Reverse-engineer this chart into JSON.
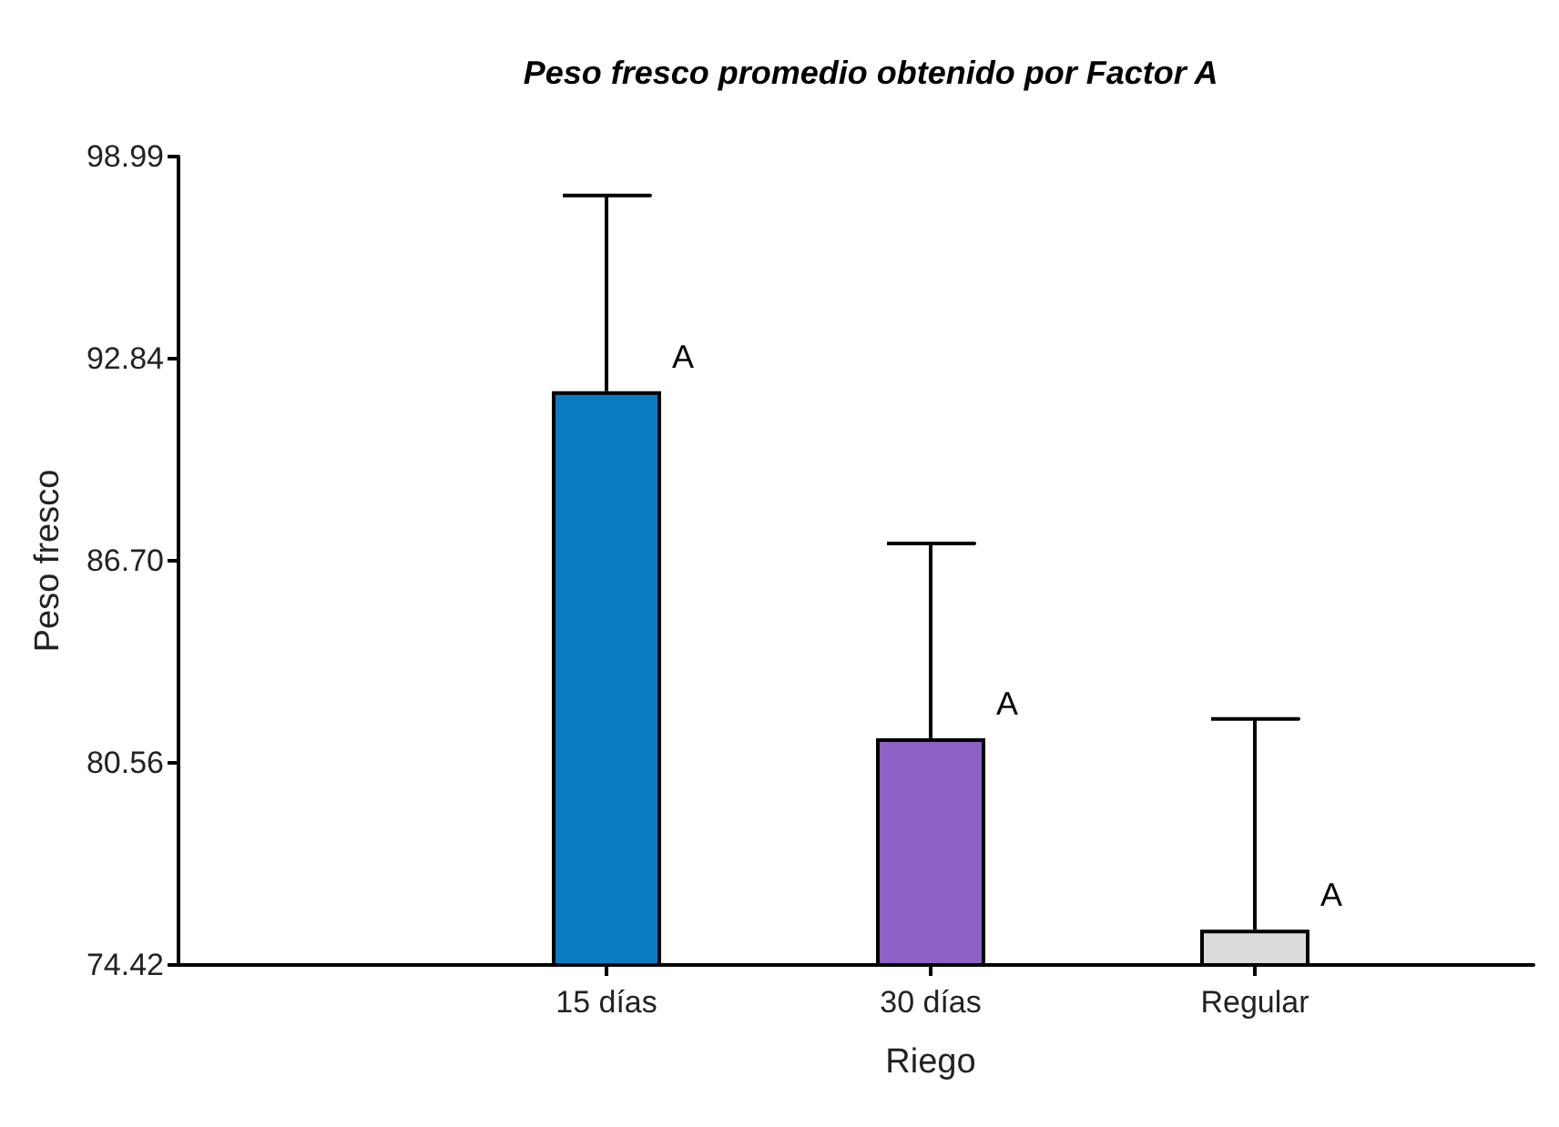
{
  "chart_data": {
    "type": "bar",
    "title": "Peso fresco promedio obtenido por Factor A",
    "xlabel": "Riego",
    "ylabel": "Peso fresco",
    "categories": [
      "15 días",
      "30 días",
      "Regular"
    ],
    "values": [
      91.86,
      81.31,
      75.49
    ],
    "colors": [
      "#0a7cc2",
      "#8e62c4",
      "#dcdcdc"
    ],
    "errors": [
      [
        91.86,
        97.81
      ],
      [
        81.31,
        87.23
      ],
      [
        75.49,
        81.9
      ]
    ],
    "ylim": [
      74.42,
      98.99
    ],
    "yticks": [
      {
        "value": 74.42,
        "label": "74.42"
      },
      {
        "value": 80.56,
        "label": "80.56"
      },
      {
        "value": 86.7,
        "label": "86.70"
      },
      {
        "value": 92.84,
        "label": "92.84"
      },
      {
        "value": 98.99,
        "label": "98.99"
      }
    ],
    "annotations": [
      {
        "text": "A",
        "x": "15 días",
        "y": 91.86
      },
      {
        "text": "A",
        "x": "30 días",
        "y": 81.31
      },
      {
        "text": "A",
        "x": "Regular",
        "y": 75.49
      }
    ],
    "grid": false
  }
}
